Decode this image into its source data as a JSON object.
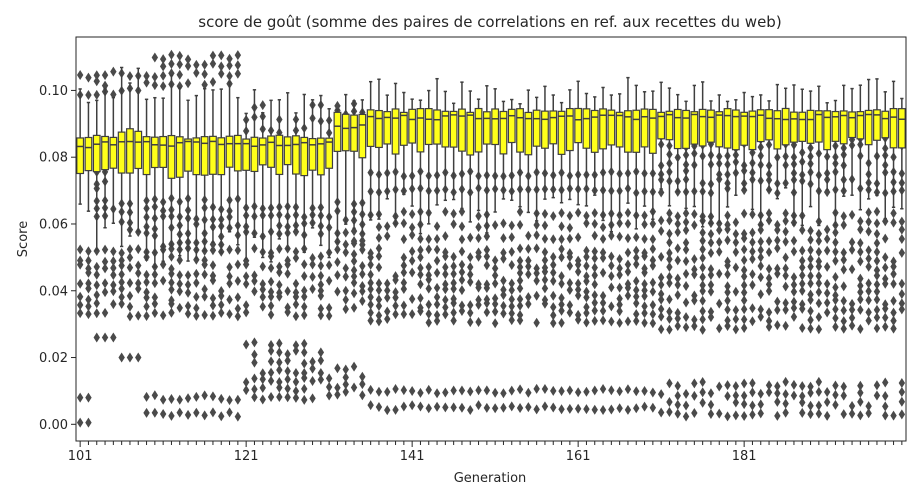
{
  "chart_data": {
    "type": "box",
    "title": "score de goût (somme des paires de correlations en ref. aux recettes du web)",
    "xlabel": "Generation",
    "ylabel": "Score",
    "x_tick_labels": [
      "101",
      "121",
      "141",
      "161",
      "181"
    ],
    "y_ticks": [
      0.0,
      0.02,
      0.04,
      0.06,
      0.08,
      0.1
    ],
    "ylim": [
      -0.005,
      0.116
    ],
    "generation_range": [
      101,
      200
    ],
    "grid": false,
    "legend": "none",
    "box_color": "#ffff1a",
    "line_color": "#3f3f3f",
    "outlier_color": "#4a4a4a",
    "groups": [
      {
        "from": 101,
        "to": 102,
        "q1": 0.0745,
        "median": 0.083,
        "q3": 0.086,
        "whisker_low": 0.06,
        "whisker_high": 0.099,
        "outlier_bands": [
          [
            0.0005,
            0.001
          ],
          [
            0.008,
            0.008
          ],
          [
            0.033,
            0.052
          ],
          [
            0.099,
            0.104
          ]
        ]
      },
      {
        "from": 103,
        "to": 105,
        "q1": 0.076,
        "median": 0.084,
        "q3": 0.086,
        "whisker_low": 0.058,
        "whisker_high": 0.099,
        "outlier_bands": [
          [
            0.026,
            0.026
          ],
          [
            0.034,
            0.052
          ],
          [
            0.062,
            0.078
          ],
          [
            0.099,
            0.105
          ]
        ]
      },
      {
        "from": 106,
        "to": 108,
        "q1": 0.076,
        "median": 0.084,
        "q3": 0.088,
        "whisker_low": 0.055,
        "whisker_high": 0.103,
        "outlier_bands": [
          [
            0.02,
            0.021
          ],
          [
            0.033,
            0.052
          ],
          [
            0.058,
            0.066
          ],
          [
            0.1,
            0.105
          ]
        ]
      },
      {
        "from": 109,
        "to": 120,
        "q1": 0.0755,
        "median": 0.084,
        "q3": 0.086,
        "whisker_low": 0.053,
        "whisker_high": 0.101,
        "outlier_bands": [
          [
            0.003,
            0.008
          ],
          [
            0.033,
            0.052
          ],
          [
            0.054,
            0.067
          ],
          [
            0.102,
            0.11
          ]
        ]
      },
      {
        "from": 121,
        "to": 131,
        "q1": 0.076,
        "median": 0.084,
        "q3": 0.086,
        "whisker_low": 0.054,
        "whisker_high": 0.097,
        "outlier_bands": [
          [
            0.008,
            0.024
          ],
          [
            0.033,
            0.052
          ],
          [
            0.057,
            0.065
          ],
          [
            0.088,
            0.095
          ]
        ]
      },
      {
        "from": 132,
        "to": 135,
        "q1": 0.08,
        "median": 0.089,
        "q3": 0.093,
        "whisker_low": 0.054,
        "whisker_high": 0.095,
        "outlier_bands": [
          [
            0.009,
            0.017
          ],
          [
            0.035,
            0.054
          ],
          [
            0.055,
            0.066
          ],
          [
            0.086,
            0.096
          ]
        ]
      },
      {
        "from": 136,
        "to": 170,
        "q1": 0.0825,
        "median": 0.092,
        "q3": 0.094,
        "whisker_low": 0.063,
        "whisker_high": 0.1,
        "outlier_bands": [
          [
            0.005,
            0.01
          ],
          [
            0.031,
            0.052
          ],
          [
            0.056,
            0.063
          ],
          [
            0.07,
            0.075
          ]
        ]
      },
      {
        "from": 171,
        "to": 200,
        "q1": 0.084,
        "median": 0.092,
        "q3": 0.094,
        "whisker_low": 0.065,
        "whisker_high": 0.1,
        "outlier_bands": [
          [
            0.003,
            0.012
          ],
          [
            0.029,
            0.052
          ],
          [
            0.055,
            0.063
          ],
          [
            0.07,
            0.086
          ]
        ]
      }
    ]
  }
}
